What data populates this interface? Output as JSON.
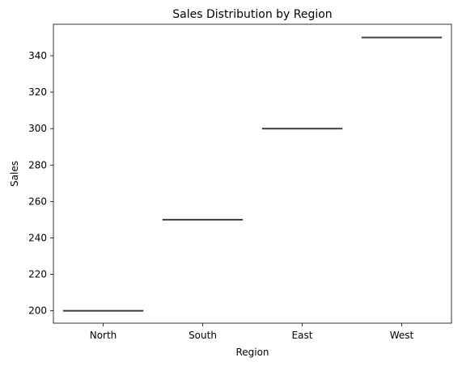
{
  "chart_data": {
    "type": "box",
    "title": "Sales Distribution by Region",
    "xlabel": "Region",
    "ylabel": "Sales",
    "categories": [
      "North",
      "South",
      "East",
      "West"
    ],
    "values": [
      200,
      250,
      300,
      350
    ],
    "ylim": [
      193.2,
      357.3
    ],
    "yticks": [
      "200",
      "220",
      "240",
      "260",
      "280",
      "300",
      "320",
      "340"
    ],
    "grid": false,
    "line_color": "#3f3f3f"
  }
}
